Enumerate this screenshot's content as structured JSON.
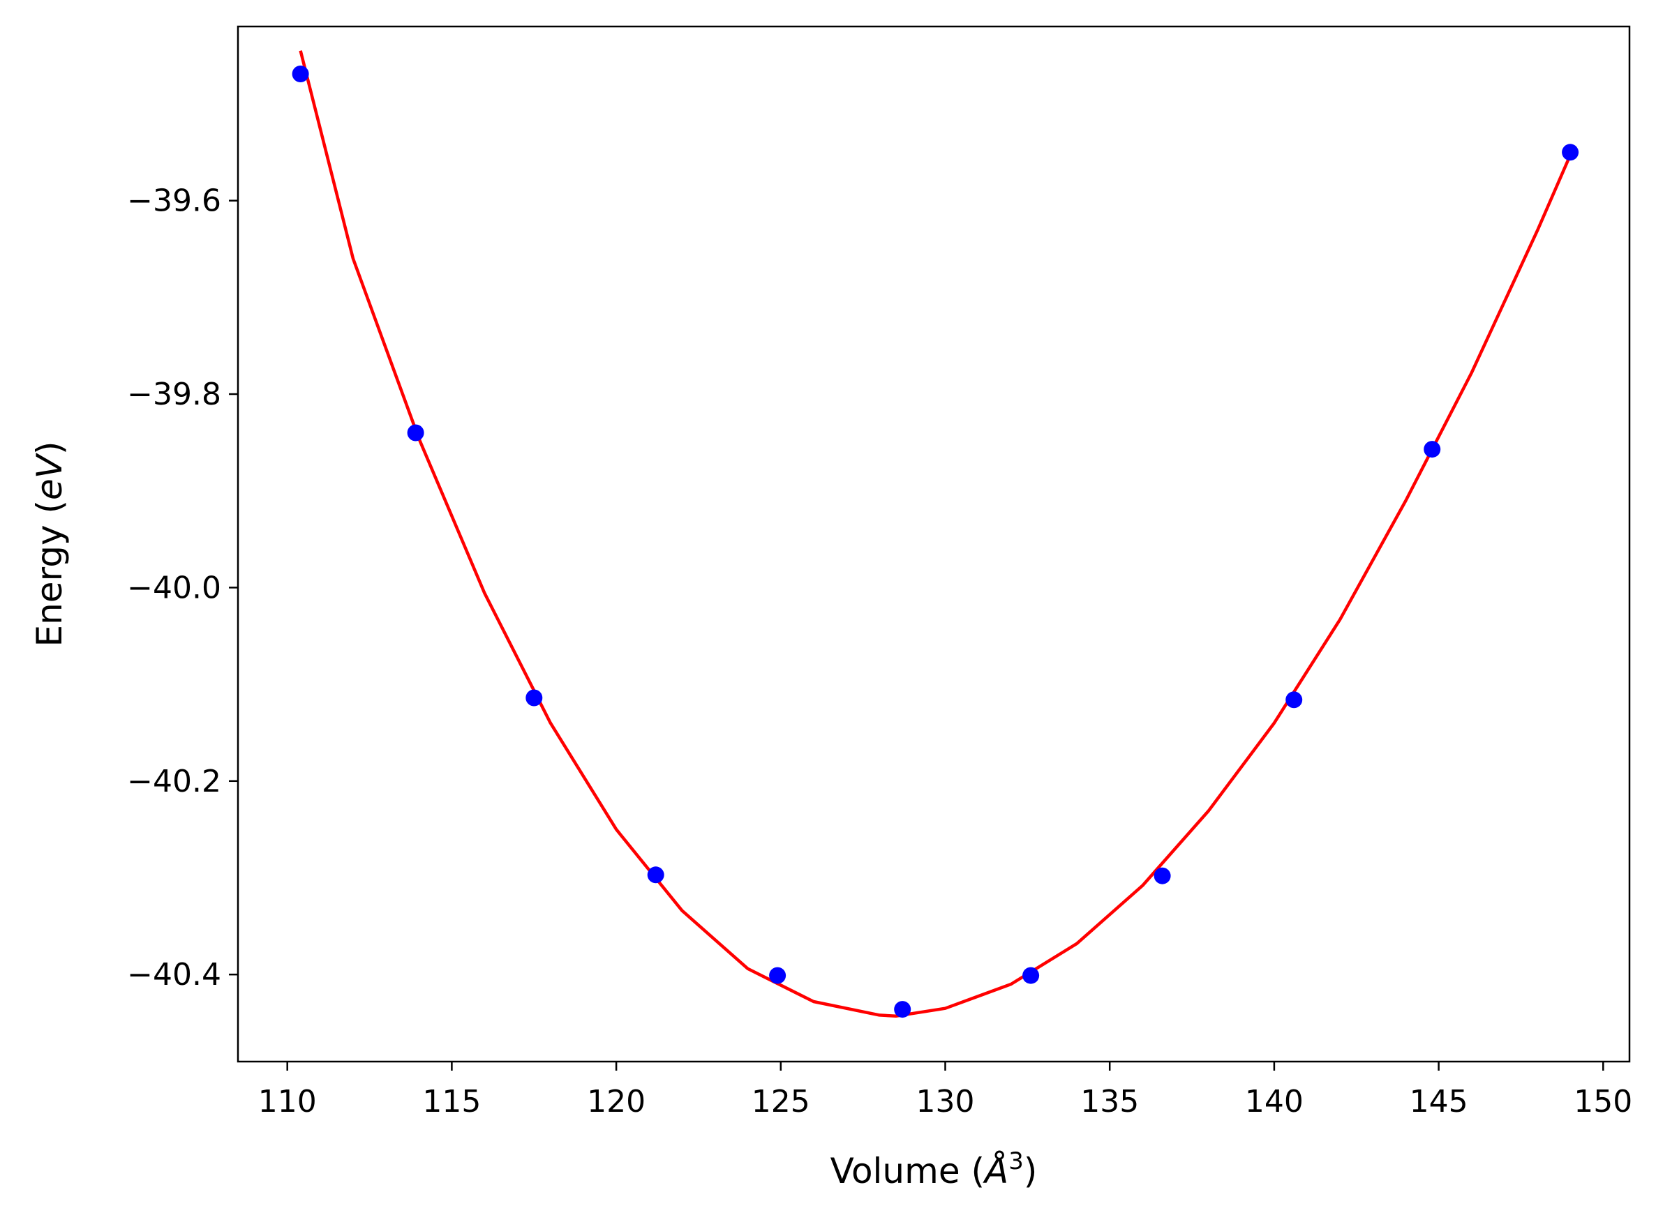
{
  "chart_data": {
    "type": "scatter",
    "xlabel_main": "Volume (",
    "xlabel_symbol": "Å",
    "xlabel_sup": "3",
    "xlabel_close": ")",
    "ylabel_main": "Energy (",
    "ylabel_symbol": "eV",
    "ylabel_close": ")",
    "xlim": [
      108.5,
      150.8
    ],
    "ylim": [
      -40.49,
      -39.42
    ],
    "xticks": [
      110,
      115,
      120,
      125,
      130,
      135,
      140,
      145,
      150
    ],
    "xtick_labels": [
      "110",
      "115",
      "120",
      "125",
      "130",
      "135",
      "140",
      "145",
      "150"
    ],
    "yticks": [
      -39.6,
      -39.8,
      -40.0,
      -40.2,
      -40.4
    ],
    "ytick_labels": [
      "−39.6",
      "−39.8",
      "−40.0",
      "−40.2",
      "−40.4"
    ],
    "grid": false,
    "legend": "none",
    "series": [
      {
        "kind": "points",
        "color": "#0000ff",
        "x": [
          110.4,
          113.9,
          117.5,
          121.2,
          124.9,
          128.7,
          132.6,
          136.6,
          140.6,
          144.8,
          149.0
        ],
        "y": [
          -39.469,
          -39.84,
          -40.114,
          -40.297,
          -40.401,
          -40.436,
          -40.401,
          -40.298,
          -40.116,
          -39.857,
          -39.55
        ]
      },
      {
        "kind": "fit-line",
        "color": "#ff0000",
        "x": [
          110.4,
          112.0,
          114.0,
          116.0,
          118.0,
          120.0,
          122.0,
          124.0,
          126.0,
          128.0,
          128.5,
          130.0,
          132.0,
          134.0,
          136.0,
          138.0,
          140.0,
          142.0,
          144.0,
          146.0,
          148.0,
          149.0
        ],
        "y": [
          -39.445,
          -39.66,
          -39.846,
          -40.006,
          -40.14,
          -40.25,
          -40.334,
          -40.394,
          -40.428,
          -40.442,
          -40.443,
          -40.435,
          -40.41,
          -40.368,
          -40.308,
          -40.231,
          -40.14,
          -40.033,
          -39.91,
          -39.778,
          -39.631,
          -39.553
        ]
      }
    ]
  }
}
